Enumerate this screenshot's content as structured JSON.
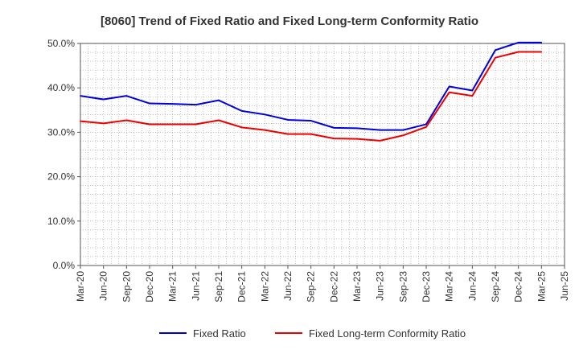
{
  "chart_data": {
    "type": "line",
    "title": "[8060]  Trend of Fixed Ratio and Fixed Long-term Conformity Ratio",
    "xlabel": "",
    "ylabel": "",
    "x": [
      "Mar-20",
      "Jun-20",
      "Sep-20",
      "Dec-20",
      "Mar-21",
      "Jun-21",
      "Sep-21",
      "Dec-21",
      "Mar-22",
      "Jun-22",
      "Sep-22",
      "Dec-22",
      "Mar-23",
      "Jun-23",
      "Sep-23",
      "Dec-23",
      "Mar-24",
      "Jun-24",
      "Sep-24",
      "Dec-24",
      "Mar-25",
      "Jun-25"
    ],
    "ylim": [
      0,
      50
    ],
    "yticks": [
      "0.0%",
      "10.0%",
      "20.0%",
      "30.0%",
      "40.0%",
      "50.0%"
    ],
    "grid": true,
    "legend_position": "bottom",
    "series": [
      {
        "name": "Fixed Ratio",
        "color": "#0000dd",
        "values": [
          38.2,
          37.4,
          38.2,
          36.5,
          36.4,
          36.2,
          37.2,
          34.8,
          34.0,
          32.8,
          32.6,
          31.0,
          30.9,
          30.5,
          30.5,
          31.8,
          40.3,
          39.4,
          48.5,
          50.2,
          50.2,
          null
        ]
      },
      {
        "name": "Fixed Long-term Conformity Ratio",
        "color": "#ee0000",
        "values": [
          32.5,
          32.0,
          32.7,
          31.8,
          31.8,
          31.8,
          32.7,
          31.1,
          30.5,
          29.6,
          29.6,
          28.6,
          28.5,
          28.1,
          29.3,
          31.2,
          39.0,
          38.2,
          46.8,
          48.1,
          48.1,
          null
        ]
      }
    ]
  }
}
